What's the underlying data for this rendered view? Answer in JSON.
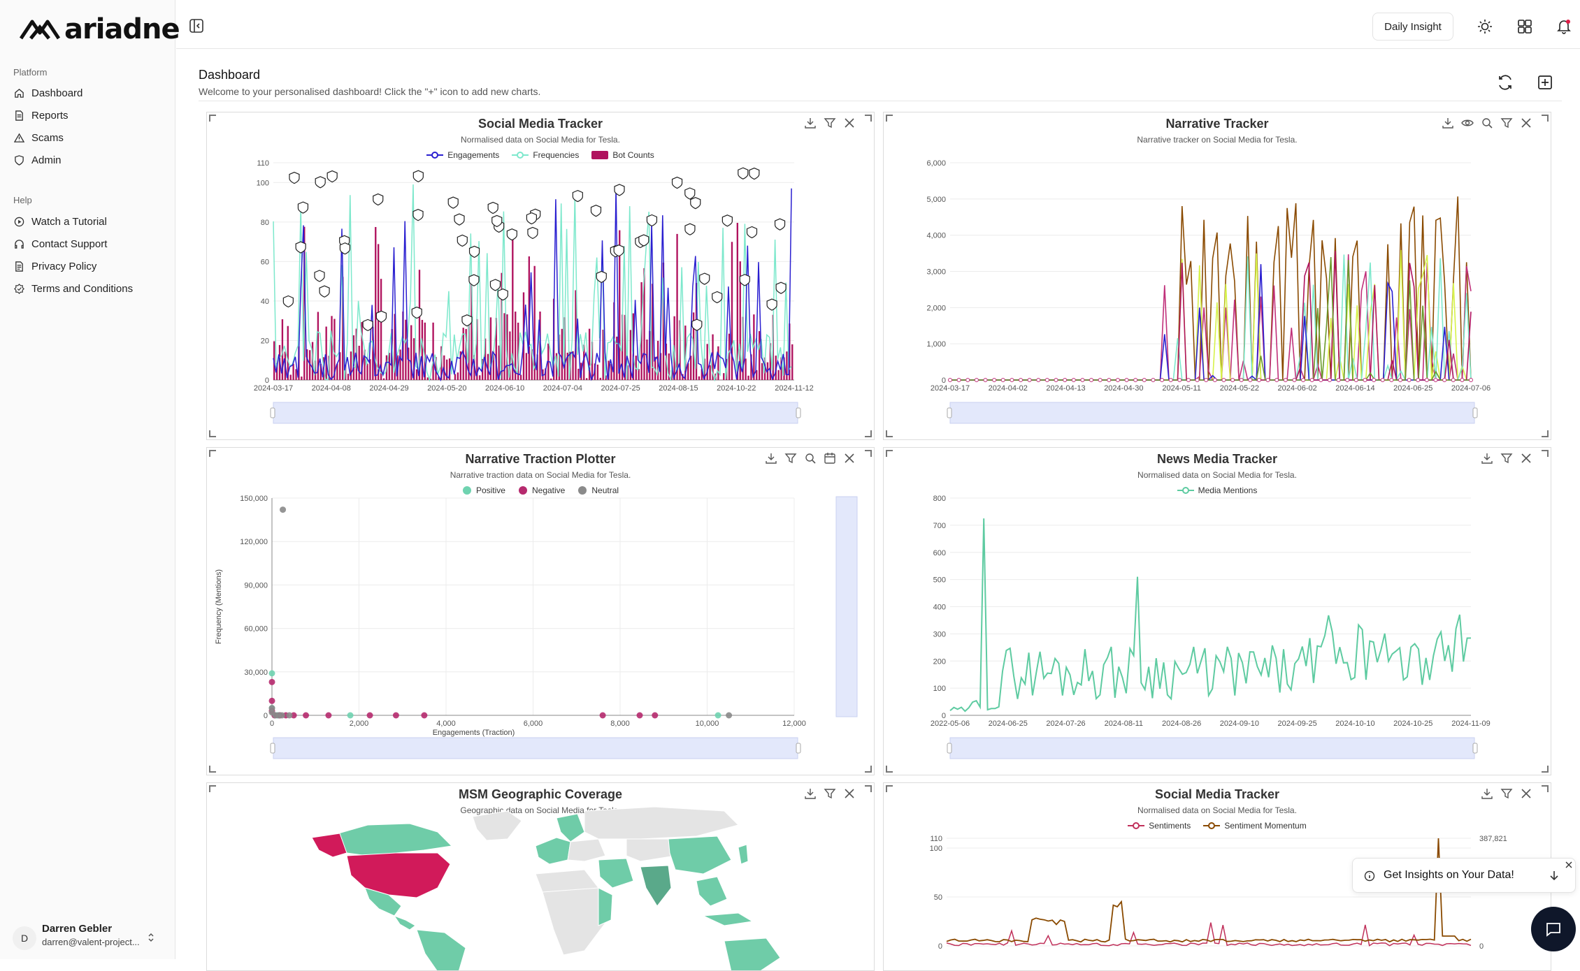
{
  "brand": {
    "name": "ariadne"
  },
  "sidebar": {
    "platform_label": "Platform",
    "platform_items": [
      {
        "label": "Dashboard",
        "icon": "home-icon"
      },
      {
        "label": "Reports",
        "icon": "file-text-icon"
      },
      {
        "label": "Scams",
        "icon": "warning-icon"
      },
      {
        "label": "Admin",
        "icon": "shield-icon"
      }
    ],
    "help_label": "Help",
    "help_items": [
      {
        "label": "Watch a Tutorial",
        "icon": "play-circle-icon"
      },
      {
        "label": "Contact Support",
        "icon": "headphones-icon"
      },
      {
        "label": "Privacy Policy",
        "icon": "document-icon"
      },
      {
        "label": "Terms and Conditions",
        "icon": "badge-check-icon"
      }
    ],
    "user": {
      "initial": "D",
      "name": "Darren Gebler",
      "email": "darren@valent-project..."
    }
  },
  "topbar": {
    "daily_insight": "Daily Insight"
  },
  "dashboard": {
    "title": "Dashboard",
    "subtitle": "Welcome to your personalised dashboard! Click the \"+\" icon to add new charts."
  },
  "cards": {
    "smt1": {
      "title": "Social Media Tracker",
      "subtitle": "Normalised data on Social Media for Tesla."
    },
    "nt": {
      "title": "Narrative Tracker",
      "subtitle": "Narrative tracker on Social Media for Tesla."
    },
    "ntp": {
      "title": "Narrative Traction Plotter",
      "subtitle": "Narrative traction data on Social Media for Tesla."
    },
    "nmt": {
      "title": "News Media Tracker",
      "subtitle": "Normalised data on Social Media for Tesla."
    },
    "msm": {
      "title": "MSM Geographic Coverage",
      "subtitle": "Geographic data on Social Media for Tesla."
    },
    "smt2": {
      "title": "Social Media Tracker",
      "subtitle": "Normalised data on Social Media for Tesla."
    }
  },
  "insight_popup": {
    "label": "Get Insights on Your Data!"
  },
  "colors": {
    "engagements": "#2a1fd0",
    "frequencies": "#7de8cc",
    "bot_counts": "#b0125e",
    "positive": "#6fd3b0",
    "negative": "#b62a6e",
    "neutral": "#8a8a8a",
    "media": "#5ecba1",
    "sentiments": "#c0305a",
    "momentum": "#8a4a00"
  },
  "chart_data": [
    {
      "type": "bar",
      "title": "Social Media Tracker",
      "subtitle": "Normalised data on Social Media for Tesla.",
      "series": [
        {
          "name": "Engagements"
        },
        {
          "name": "Frequencies"
        },
        {
          "name": "Bot Counts"
        }
      ],
      "x_ticks": [
        "2024-03-17",
        "2024-04-08",
        "2024-04-29",
        "2024-05-20",
        "2024-06-10",
        "2024-07-04",
        "2024-07-25",
        "2024-08-15",
        "2024-10-22",
        "2024-11-12"
      ],
      "y_ticks": [
        "0",
        "20",
        "40",
        "60",
        "80",
        "100",
        "110"
      ],
      "ylim": [
        0,
        110
      ]
    },
    {
      "type": "line",
      "title": "Narrative Tracker",
      "subtitle": "Narrative tracker on Social Media for Tesla.",
      "x_ticks": [
        "2024-03-17",
        "2024-04-02",
        "2024-04-13",
        "2024-04-30",
        "2024-05-11",
        "2024-05-22",
        "2024-06-02",
        "2024-06-14",
        "2024-06-25",
        "2024-07-06"
      ],
      "y_ticks": [
        "0",
        "1,000",
        "2,000",
        "3,000",
        "4,000",
        "5,000",
        "6,000"
      ],
      "ylim": [
        0,
        6000
      ]
    },
    {
      "type": "scatter",
      "title": "Narrative Traction Plotter",
      "subtitle": "Narrative traction data on Social Media for Tesla.",
      "xlabel": "Engagements (Traction)",
      "ylabel": "Frequency (Mentions)",
      "series": [
        {
          "name": "Positive",
          "points": [
            [
              0,
              29000
            ],
            [
              0,
              5000
            ],
            [
              180,
              0
            ],
            [
              1800,
              0
            ],
            [
              10250,
              0
            ],
            [
              120,
              0
            ]
          ]
        },
        {
          "name": "Negative",
          "points": [
            [
              0,
              23000
            ],
            [
              0,
              10000
            ],
            [
              0,
              3000
            ],
            [
              180,
              0
            ],
            [
              320,
              0
            ],
            [
              500,
              0
            ],
            [
              780,
              0
            ],
            [
              1300,
              0
            ],
            [
              2250,
              0
            ],
            [
              2850,
              0
            ],
            [
              3500,
              0
            ],
            [
              7600,
              0
            ],
            [
              8450,
              0
            ],
            [
              8800,
              0
            ],
            [
              60,
              0
            ]
          ]
        },
        {
          "name": "Neutral",
          "points": [
            [
              250,
              142000
            ],
            [
              0,
              5000
            ],
            [
              0,
              2000
            ],
            [
              80,
              0
            ],
            [
              150,
              0
            ],
            [
              230,
              0
            ],
            [
              400,
              0
            ],
            [
              10500,
              0
            ]
          ]
        }
      ],
      "x_ticks": [
        "0",
        "2,000",
        "4,000",
        "6,000",
        "8,000",
        "10,000",
        "12,000"
      ],
      "y_ticks": [
        "0",
        "30,000",
        "60,000",
        "90,000",
        "120,000",
        "150,000"
      ],
      "xlim": [
        0,
        12000
      ],
      "ylim": [
        0,
        150000
      ]
    },
    {
      "type": "line",
      "title": "News Media Tracker",
      "subtitle": "Normalised data on Social Media for Tesla.",
      "series": [
        {
          "name": "Media Mentions"
        }
      ],
      "x_ticks": [
        "2022-05-06",
        "2024-06-25",
        "2024-07-26",
        "2024-08-11",
        "2024-08-26",
        "2024-09-10",
        "2024-09-25",
        "2024-10-10",
        "2024-10-25",
        "2024-11-09"
      ],
      "y_ticks": [
        "0",
        "100",
        "200",
        "300",
        "400",
        "500",
        "600",
        "700",
        "800"
      ],
      "ylim": [
        0,
        800
      ]
    },
    {
      "type": "line",
      "title": "Social Media Tracker",
      "subtitle": "Normalised data on Social Media for Tesla.",
      "series": [
        {
          "name": "Sentiments"
        },
        {
          "name": "Sentiment Momentum"
        }
      ],
      "y_ticks": [
        "0",
        "50",
        "100",
        "110"
      ],
      "y2_ticks": [
        "0",
        "387,821"
      ],
      "ylim": [
        0,
        110
      ]
    }
  ]
}
